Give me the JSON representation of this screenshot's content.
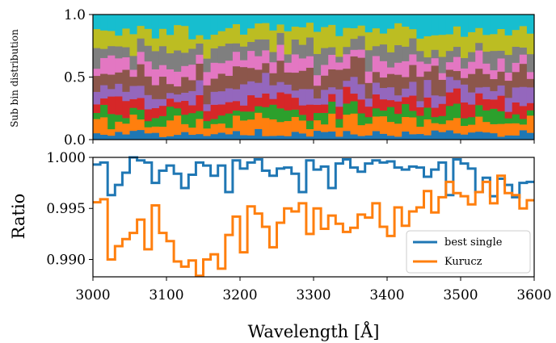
{
  "chart_data": [
    {
      "type": "bar",
      "stacked": true,
      "ylabel": "Sub bin distribution",
      "ylim": [
        0,
        1
      ],
      "xlim": [
        3000,
        3600
      ],
      "yticks": [
        "0.0",
        "0.5",
        "1.0"
      ],
      "n_bins": 60,
      "series_colors": [
        "#1f77b4",
        "#ff7f0e",
        "#2ca02c",
        "#d62728",
        "#9467bd",
        "#8c564b",
        "#e377c2",
        "#7f7f7f",
        "#bcbd22",
        "#17becf"
      ],
      "bin_sequence": [
        0.05,
        0.1,
        0.08,
        0.09,
        0.1,
        0.12,
        0.1,
        0.11,
        0.13,
        0.12
      ]
    },
    {
      "type": "line",
      "step": true,
      "xlabel": "Wavelength [Å]",
      "ylabel": "Ratio",
      "xlim": [
        3000,
        3600
      ],
      "ylim": [
        0.9883,
        1.0
      ],
      "xticks": [
        "3000",
        "3100",
        "3200",
        "3300",
        "3400",
        "3500",
        "3600"
      ],
      "yticks": [
        "0.990",
        "0.995",
        "1.000"
      ],
      "legend_position": "lower-right",
      "series": [
        {
          "name": "best single",
          "color": "#1f77b4",
          "values": [
            0.9993,
            0.9995,
            0.9963,
            0.9973,
            0.9985,
            1.0,
            0.9997,
            0.9995,
            0.9975,
            0.9987,
            0.9992,
            0.9984,
            0.997,
            0.9983,
            0.9995,
            0.9992,
            0.9982,
            0.9992,
            0.9966,
            0.9997,
            0.9989,
            0.9995,
            0.9998,
            0.9987,
            0.9982,
            0.9989,
            0.999,
            0.9984,
            0.9966,
            0.9997,
            0.9988,
            0.9991,
            0.997,
            0.9994,
            0.9998,
            0.999,
            0.9986,
            0.9994,
            0.9997,
            0.9995,
            0.9996,
            0.999,
            0.9988,
            0.9991,
            0.999,
            0.9981,
            0.9988,
            0.9995,
            0.9963,
            0.9998,
            0.9994,
            0.9989,
            0.9966,
            0.998,
            0.9962,
            0.9979,
            0.9973,
            0.9961,
            0.9975,
            0.9976
          ]
        },
        {
          "name": "Kurucz",
          "color": "#ff7f0e",
          "values": [
            0.9956,
            0.9959,
            0.99,
            0.9913,
            0.992,
            0.9926,
            0.9939,
            0.991,
            0.9953,
            0.9926,
            0.9918,
            0.9898,
            0.9893,
            0.9899,
            0.9884,
            0.99,
            0.9905,
            0.9891,
            0.9924,
            0.9942,
            0.9907,
            0.9952,
            0.9945,
            0.9932,
            0.9912,
            0.9936,
            0.995,
            0.9947,
            0.9955,
            0.9925,
            0.995,
            0.993,
            0.9943,
            0.9935,
            0.9927,
            0.9931,
            0.9944,
            0.9941,
            0.9955,
            0.9932,
            0.9923,
            0.9951,
            0.9933,
            0.9947,
            0.9951,
            0.9967,
            0.9946,
            0.9961,
            0.9976,
            0.9965,
            0.9962,
            0.9954,
            0.9966,
            0.9976,
            0.9955,
            0.9982,
            0.9965,
            0.9963,
            0.995,
            0.9958
          ]
        }
      ]
    }
  ]
}
